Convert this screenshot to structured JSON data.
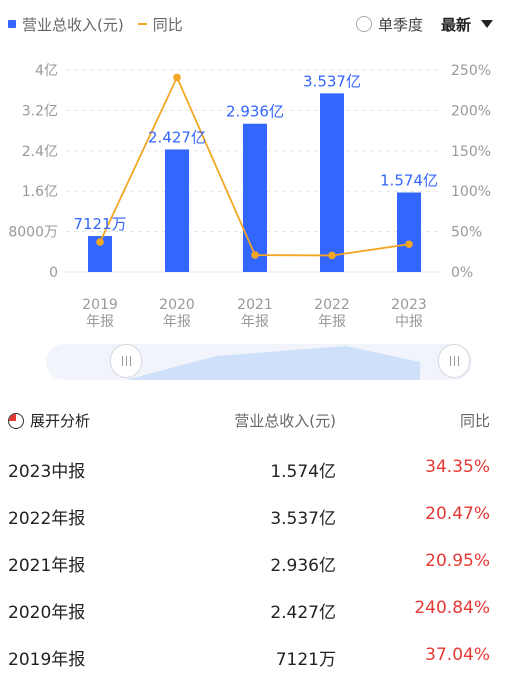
{
  "legend": {
    "revenue": "营业总收入(元)",
    "yoy": "同比"
  },
  "controls": {
    "single_quarter": "单季度",
    "latest": "最新"
  },
  "chart_data": {
    "type": "bar",
    "categories": [
      [
        "2019",
        "年报"
      ],
      [
        "2020",
        "年报"
      ],
      [
        "2021",
        "年报"
      ],
      [
        "2022",
        "年报"
      ],
      [
        "2023",
        "中报"
      ]
    ],
    "series": [
      {
        "name": "营业总收入(元)",
        "type": "bar",
        "values": [
          0.7121,
          2.427,
          2.936,
          3.537,
          1.574
        ],
        "unit": "亿",
        "color": "#3366ff",
        "labels": [
          "7121万",
          "2.427亿",
          "2.936亿",
          "3.537亿",
          "1.574亿"
        ]
      },
      {
        "name": "同比",
        "type": "line",
        "values": [
          37.04,
          240.84,
          20.95,
          20.47,
          34.35
        ],
        "unit": "%",
        "color": "#f2a623"
      }
    ],
    "y_left": {
      "ylim": [
        0,
        4
      ],
      "ticks": [
        "0",
        "8000万",
        "1.6亿",
        "2.4亿",
        "3.2亿",
        "4亿"
      ]
    },
    "y_right": {
      "ylim": [
        0,
        250
      ],
      "ticks": [
        "0%",
        "50%",
        "100%",
        "150%",
        "200%",
        "250%"
      ]
    },
    "grid": true
  },
  "table": {
    "header": {
      "analysis": "展开分析",
      "revenue": "营业总收入(元)",
      "yoy": "同比"
    },
    "rows": [
      {
        "period": "2023中报",
        "revenue": "1.574亿",
        "yoy": "34.35%"
      },
      {
        "period": "2022年报",
        "revenue": "3.537亿",
        "yoy": "20.47%"
      },
      {
        "period": "2021年报",
        "revenue": "2.936亿",
        "yoy": "20.95%"
      },
      {
        "period": "2020年报",
        "revenue": "2.427亿",
        "yoy": "240.84%"
      },
      {
        "period": "2019年报",
        "revenue": "7121万",
        "yoy": "37.04%"
      }
    ]
  }
}
